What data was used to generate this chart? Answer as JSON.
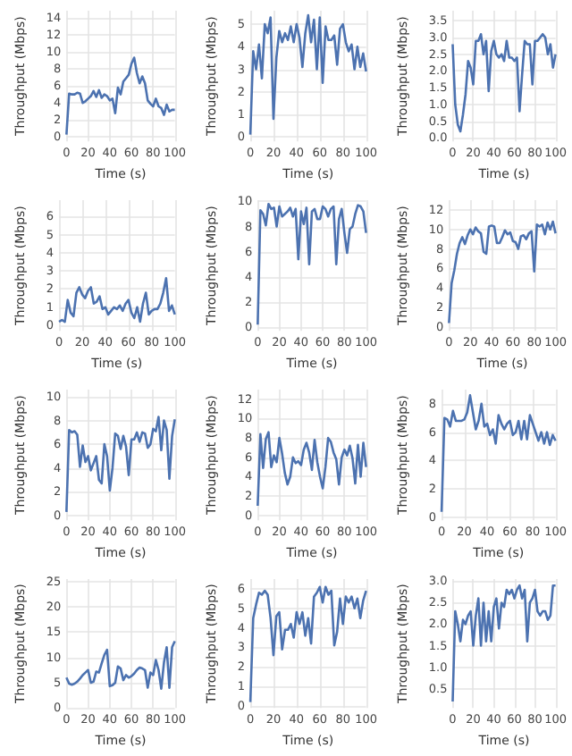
{
  "chart_data": [
    {
      "type": "line",
      "xlabel": "Time (s)",
      "ylabel": "Throughput (Mbps)",
      "grid": true,
      "marker": "none",
      "xlim": [
        0,
        100
      ],
      "xticks": [
        0,
        20,
        40,
        60,
        80,
        100
      ],
      "ylim": [
        -0.5,
        14.8
      ],
      "yticks": [
        0,
        2,
        4,
        6,
        8,
        10,
        12,
        14
      ],
      "x": [
        0,
        2.5,
        5,
        7.5,
        10,
        12.5,
        15,
        17.5,
        20,
        22.5,
        25,
        27.5,
        30,
        32.5,
        35,
        37.5,
        40,
        42.5,
        45,
        47.5,
        50,
        52.5,
        55,
        57.5,
        60,
        62.5,
        65,
        67.5,
        70,
        72.5,
        75,
        77.5,
        80,
        82.5,
        85,
        87.5,
        90,
        92.5,
        95,
        97.5,
        100
      ],
      "series": [
        {
          "color": "#4c72b0",
          "values": [
            0.3,
            5.1,
            5.0,
            5.0,
            5.2,
            5.1,
            4.0,
            4.2,
            4.5,
            4.8,
            5.4,
            4.7,
            5.5,
            4.6,
            5.0,
            4.8,
            4.3,
            4.5,
            2.8,
            5.8,
            5.0,
            6.5,
            6.9,
            7.3,
            8.6,
            9.3,
            7.5,
            6.3,
            7.1,
            6.3,
            4.3,
            3.9,
            3.6,
            4.5,
            3.6,
            3.4,
            2.6,
            3.8,
            3.0,
            3.2,
            3.2
          ]
        }
      ]
    },
    {
      "type": "line",
      "xlabel": "Time (s)",
      "ylabel": "Throughput (Mbps)",
      "grid": true,
      "marker": "none",
      "xlim": [
        0,
        100
      ],
      "xticks": [
        0,
        20,
        40,
        60,
        80,
        100
      ],
      "ylim": [
        -0.2,
        5.6
      ],
      "yticks": [
        0,
        1,
        2,
        3,
        4,
        5
      ],
      "x": [
        0,
        2.5,
        5,
        7.5,
        10,
        12.5,
        15,
        17.5,
        20,
        22.5,
        25,
        27.5,
        30,
        32.5,
        35,
        37.5,
        40,
        42.5,
        45,
        47.5,
        50,
        52.5,
        55,
        57.5,
        60,
        62.5,
        65,
        67.5,
        70,
        72.5,
        75,
        77.5,
        80,
        82.5,
        85,
        87.5,
        90,
        92.5,
        95,
        97.5,
        100
      ],
      "series": [
        {
          "color": "#4c72b0",
          "values": [
            0.1,
            3.8,
            3.0,
            4.1,
            2.6,
            5.0,
            4.6,
            5.3,
            0.8,
            3.5,
            4.7,
            4.2,
            4.6,
            4.3,
            4.9,
            4.2,
            5.0,
            4.4,
            3.1,
            4.6,
            5.4,
            4.2,
            5.2,
            3.0,
            5.3,
            2.4,
            4.9,
            4.3,
            4.3,
            4.5,
            3.2,
            4.8,
            5.0,
            4.2,
            3.8,
            4.1,
            3.0,
            4.0,
            3.1,
            3.7,
            2.9
          ]
        }
      ]
    },
    {
      "type": "line",
      "xlabel": "Time (s)",
      "ylabel": "Throughput (Mbps)",
      "grid": true,
      "marker": "none",
      "xlim": [
        0,
        100
      ],
      "xticks": [
        0,
        20,
        40,
        60,
        80,
        100
      ],
      "ylim": [
        -0.1,
        3.8
      ],
      "yticks": [
        {
          "value": 0,
          "label": "0.0"
        },
        0.5,
        {
          "value": 1,
          "label": "1.0"
        },
        1.5,
        {
          "value": 2,
          "label": "2.0"
        },
        2.5,
        {
          "value": 3,
          "label": "3.0"
        },
        3.5
      ],
      "x": [
        0,
        2.5,
        5,
        7.5,
        10,
        12.5,
        15,
        17.5,
        20,
        22.5,
        25,
        27.5,
        30,
        32.5,
        35,
        37.5,
        40,
        42.5,
        45,
        47.5,
        50,
        52.5,
        55,
        57.5,
        60,
        62.5,
        65,
        67.5,
        70,
        72.5,
        75,
        77.5,
        80,
        82.5,
        85,
        87.5,
        90,
        92.5,
        95,
        97.5,
        100
      ],
      "series": [
        {
          "color": "#4c72b0",
          "values": [
            2.8,
            1.0,
            0.4,
            0.2,
            0.7,
            1.3,
            2.3,
            2.1,
            1.6,
            2.9,
            2.9,
            3.1,
            2.5,
            2.9,
            1.4,
            2.6,
            2.9,
            2.5,
            2.4,
            2.5,
            2.3,
            2.9,
            2.4,
            2.4,
            2.3,
            2.4,
            0.8,
            1.9,
            2.9,
            2.8,
            2.8,
            1.6,
            2.9,
            2.9,
            3.0,
            3.1,
            3.0,
            2.5,
            2.8,
            2.1,
            2.5
          ]
        }
      ]
    },
    {
      "type": "line",
      "xlabel": "Time (s)",
      "ylabel": "Throughput (Mbps)",
      "grid": true,
      "marker": "none",
      "xlim": [
        0,
        100
      ],
      "xticks": [
        0,
        20,
        40,
        60,
        80,
        100
      ],
      "ylim": [
        -0.3,
        6.9
      ],
      "yticks": [
        0,
        1,
        2,
        3,
        4,
        5,
        6
      ],
      "x": [
        0,
        2.5,
        5,
        7.5,
        10,
        12.5,
        15,
        17.5,
        20,
        22.5,
        25,
        27.5,
        30,
        32.5,
        35,
        37.5,
        40,
        42.5,
        45,
        47.5,
        50,
        52.5,
        55,
        57.5,
        60,
        62.5,
        65,
        67.5,
        70,
        72.5,
        75,
        77.5,
        80,
        82.5,
        85,
        87.5,
        90,
        92.5,
        95,
        97.5,
        100
      ],
      "series": [
        {
          "color": "#4c72b0",
          "values": [
            0.2,
            0.3,
            0.2,
            1.4,
            0.7,
            0.5,
            1.8,
            2.1,
            1.7,
            1.5,
            1.9,
            2.1,
            1.2,
            1.3,
            1.6,
            0.9,
            1.0,
            0.6,
            0.8,
            1.0,
            0.9,
            1.1,
            0.8,
            1.2,
            1.4,
            0.7,
            0.4,
            1.0,
            0.2,
            1.2,
            1.8,
            0.6,
            0.8,
            0.9,
            0.9,
            1.2,
            1.8,
            2.6,
            0.8,
            1.1,
            0.6
          ]
        }
      ]
    },
    {
      "type": "line",
      "xlabel": "Time (s)",
      "ylabel": "Throughput (Mbps)",
      "grid": true,
      "marker": "none",
      "xlim": [
        0,
        100
      ],
      "xticks": [
        0,
        20,
        40,
        60,
        80,
        100
      ],
      "ylim": [
        -0.3,
        10.1
      ],
      "yticks": [
        0,
        2,
        4,
        6,
        8,
        10
      ],
      "x": [
        0,
        2.5,
        5,
        7.5,
        10,
        12.5,
        15,
        17.5,
        20,
        22.5,
        25,
        27.5,
        30,
        32.5,
        35,
        37.5,
        40,
        42.5,
        45,
        47.5,
        50,
        52.5,
        55,
        57.5,
        60,
        62.5,
        65,
        67.5,
        70,
        72.5,
        75,
        77.5,
        80,
        82.5,
        85,
        87.5,
        90,
        92.5,
        95,
        97.5,
        100
      ],
      "series": [
        {
          "color": "#4c72b0",
          "values": [
            0.2,
            9.3,
            9.0,
            8.1,
            9.8,
            9.4,
            9.5,
            8.0,
            9.6,
            8.8,
            9.0,
            9.2,
            9.5,
            8.8,
            9.4,
            5.4,
            9.2,
            8.2,
            9.5,
            5.0,
            9.2,
            9.4,
            8.6,
            8.6,
            9.6,
            9.4,
            8.8,
            9.4,
            9.6,
            5.0,
            8.6,
            9.4,
            7.5,
            5.9,
            7.8,
            8.0,
            9.0,
            9.7,
            9.6,
            9.2,
            7.5
          ]
        }
      ]
    },
    {
      "type": "line",
      "xlabel": "Time (s)",
      "ylabel": "Throughput (Mbps)",
      "grid": true,
      "marker": "none",
      "xlim": [
        0,
        100
      ],
      "xticks": [
        0,
        20,
        40,
        60,
        80,
        100
      ],
      "ylim": [
        -0.4,
        13
      ],
      "yticks": [
        0,
        2,
        4,
        6,
        8,
        10,
        12
      ],
      "x": [
        0,
        2.5,
        5,
        7.5,
        10,
        12.5,
        15,
        17.5,
        20,
        22.5,
        25,
        27.5,
        30,
        32.5,
        35,
        37.5,
        40,
        42.5,
        45,
        47.5,
        50,
        52.5,
        55,
        57.5,
        60,
        62.5,
        65,
        67.5,
        70,
        72.5,
        75,
        77.5,
        80,
        82.5,
        85,
        87.5,
        90,
        92.5,
        95,
        97.5,
        100
      ],
      "series": [
        {
          "color": "#4c72b0",
          "values": [
            0.4,
            4.5,
            5.8,
            7.5,
            8.6,
            9.2,
            8.5,
            9.4,
            10.0,
            9.5,
            10.2,
            9.8,
            9.6,
            7.7,
            7.5,
            10.3,
            10.4,
            10.3,
            8.6,
            8.6,
            9.2,
            9.9,
            9.5,
            9.7,
            8.8,
            8.7,
            8.0,
            9.3,
            9.4,
            9.0,
            9.6,
            9.8,
            5.7,
            10.5,
            10.3,
            10.5,
            9.5,
            10.7,
            10.0,
            10.8,
            9.6
          ]
        }
      ]
    },
    {
      "type": "line",
      "xlabel": "Time (s)",
      "ylabel": "Throughput (Mbps)",
      "grid": true,
      "marker": "none",
      "xlim": [
        0,
        100
      ],
      "xticks": [
        0,
        20,
        40,
        60,
        80,
        100
      ],
      "ylim": [
        -0.4,
        10.6
      ],
      "yticks": [
        0,
        2,
        4,
        6,
        8,
        10
      ],
      "x": [
        0,
        2.5,
        5,
        7.5,
        10,
        12.5,
        15,
        17.5,
        20,
        22.5,
        25,
        27.5,
        30,
        32.5,
        35,
        37.5,
        40,
        42.5,
        45,
        47.5,
        50,
        52.5,
        55,
        57.5,
        60,
        62.5,
        65,
        67.5,
        70,
        72.5,
        75,
        77.5,
        80,
        82.5,
        85,
        87.5,
        90,
        92.5,
        95,
        97.5,
        100
      ],
      "series": [
        {
          "color": "#4c72b0",
          "values": [
            0.3,
            7.2,
            7.0,
            7.1,
            6.8,
            4.1,
            5.9,
            4.5,
            5.0,
            3.8,
            4.4,
            5.0,
            3.0,
            2.7,
            6.0,
            5.0,
            2.1,
            4.0,
            6.9,
            6.7,
            5.6,
            6.7,
            5.8,
            3.4,
            6.4,
            6.4,
            7.0,
            6.2,
            7.0,
            6.9,
            5.7,
            6.0,
            7.3,
            7.1,
            8.3,
            5.5,
            8.0,
            7.2,
            3.1,
            6.7,
            8.1
          ]
        }
      ]
    },
    {
      "type": "line",
      "xlabel": "Time (s)",
      "ylabel": "Throughput (Mbps)",
      "grid": true,
      "marker": "none",
      "xlim": [
        0,
        100
      ],
      "xticks": [
        0,
        20,
        40,
        60,
        80,
        100
      ],
      "ylim": [
        -0.5,
        13
      ],
      "yticks": [
        0,
        2,
        4,
        6,
        8,
        10,
        12
      ],
      "x": [
        0,
        2.5,
        5,
        7.5,
        10,
        12.5,
        15,
        17.5,
        20,
        22.5,
        25,
        27.5,
        30,
        32.5,
        35,
        37.5,
        40,
        42.5,
        45,
        47.5,
        50,
        52.5,
        55,
        57.5,
        60,
        62.5,
        65,
        67.5,
        70,
        72.5,
        75,
        77.5,
        80,
        82.5,
        85,
        87.5,
        90,
        92.5,
        95,
        97.5,
        100
      ],
      "series": [
        {
          "color": "#4c72b0",
          "values": [
            1.0,
            8.4,
            4.9,
            7.9,
            8.6,
            5.0,
            6.2,
            5.5,
            8.0,
            6.4,
            4.4,
            3.2,
            4.0,
            6.0,
            5.4,
            5.6,
            5.2,
            6.8,
            7.5,
            6.5,
            4.7,
            7.8,
            5.5,
            4.0,
            2.8,
            5.0,
            8.0,
            7.6,
            6.5,
            5.8,
            3.2,
            6.0,
            6.8,
            6.2,
            7.2,
            5.9,
            3.3,
            7.3,
            4.0,
            7.5,
            5.0
          ]
        }
      ]
    },
    {
      "type": "line",
      "xlabel": "Time (s)",
      "ylabel": "Throughput (Mbps)",
      "grid": true,
      "marker": "none",
      "xlim": [
        0,
        100
      ],
      "xticks": [
        0,
        20,
        40,
        60,
        80,
        100
      ],
      "ylim": [
        -0.2,
        9
      ],
      "yticks": [
        0,
        2,
        4,
        6,
        8
      ],
      "x": [
        0,
        2.5,
        5,
        7.5,
        10,
        12.5,
        15,
        17.5,
        20,
        22.5,
        25,
        27.5,
        30,
        32.5,
        35,
        37.5,
        40,
        42.5,
        45,
        47.5,
        50,
        52.5,
        55,
        57.5,
        60,
        62.5,
        65,
        67.5,
        70,
        72.5,
        75,
        77.5,
        80,
        82.5,
        85,
        87.5,
        90,
        92.5,
        95,
        97.5,
        100
      ],
      "series": [
        {
          "color": "#4c72b0",
          "values": [
            0.4,
            7.0,
            6.9,
            6.4,
            7.5,
            6.8,
            6.8,
            6.8,
            6.9,
            7.4,
            8.6,
            7.4,
            6.2,
            6.8,
            8.0,
            6.4,
            6.6,
            5.8,
            6.2,
            5.2,
            7.2,
            6.6,
            6.2,
            6.6,
            6.8,
            5.8,
            6.0,
            6.8,
            5.5,
            6.8,
            5.5,
            7.2,
            6.6,
            6.0,
            5.4,
            6.0,
            5.2,
            6.0,
            5.1,
            5.8,
            5.4
          ]
        }
      ]
    },
    {
      "type": "line",
      "xlabel": "Time (s)",
      "ylabel": "Throughput (Mbps)",
      "grid": true,
      "marker": "none",
      "xlim": [
        0,
        100
      ],
      "xticks": [
        0,
        20,
        40,
        60,
        80,
        100
      ],
      "ylim": [
        0,
        25.5
      ],
      "yticks": [
        0,
        5,
        10,
        15,
        20,
        25
      ],
      "x": [
        0,
        2.5,
        5,
        7.5,
        10,
        12.5,
        15,
        17.5,
        20,
        22.5,
        25,
        27.5,
        30,
        32.5,
        35,
        37.5,
        40,
        42.5,
        45,
        47.5,
        50,
        52.5,
        55,
        57.5,
        60,
        62.5,
        65,
        67.5,
        70,
        72.5,
        75,
        77.5,
        80,
        82.5,
        85,
        87.5,
        90,
        92.5,
        95,
        97.5,
        100
      ],
      "series": [
        {
          "color": "#4c72b0",
          "values": [
            6.0,
            4.8,
            4.6,
            4.8,
            5.2,
            5.8,
            6.5,
            7.0,
            7.5,
            5.0,
            5.2,
            7.2,
            7.0,
            8.8,
            10.5,
            11.5,
            4.3,
            4.5,
            5.0,
            8.2,
            7.8,
            5.5,
            6.5,
            6.0,
            6.3,
            6.8,
            7.5,
            8.0,
            7.8,
            7.5,
            4.0,
            7.0,
            6.5,
            9.5,
            7.5,
            3.8,
            9.0,
            12.0,
            4.0,
            12.0,
            13.2
          ]
        }
      ]
    },
    {
      "type": "line",
      "xlabel": "Time (s)",
      "ylabel": "Throughput (Mbps)",
      "grid": true,
      "marker": "none",
      "xlim": [
        0,
        100
      ],
      "xticks": [
        0,
        20,
        40,
        60,
        80,
        100
      ],
      "ylim": [
        -0.1,
        6.5
      ],
      "yticks": [
        0,
        1,
        2,
        3,
        4,
        5,
        6
      ],
      "x": [
        0,
        2.5,
        5,
        7.5,
        10,
        12.5,
        15,
        17.5,
        20,
        22.5,
        25,
        27.5,
        30,
        32.5,
        35,
        37.5,
        40,
        42.5,
        45,
        47.5,
        50,
        52.5,
        55,
        57.5,
        60,
        62.5,
        65,
        67.5,
        70,
        72.5,
        75,
        77.5,
        80,
        82.5,
        85,
        87.5,
        90,
        92.5,
        95,
        97.5,
        100
      ],
      "series": [
        {
          "color": "#4c72b0",
          "values": [
            0.2,
            4.5,
            5.2,
            5.8,
            5.7,
            5.9,
            5.7,
            4.5,
            2.6,
            4.6,
            4.8,
            2.9,
            3.9,
            3.9,
            4.2,
            3.5,
            4.8,
            4.2,
            4.8,
            3.6,
            4.5,
            3.2,
            5.6,
            5.8,
            6.1,
            5.3,
            6.1,
            5.7,
            5.9,
            3.1,
            3.8,
            5.5,
            4.2,
            5.6,
            5.3,
            5.6,
            5.0,
            5.5,
            4.5,
            5.4,
            5.9
          ]
        }
      ]
    },
    {
      "type": "line",
      "xlabel": "Time (s)",
      "ylabel": "Throughput (Mbps)",
      "grid": true,
      "marker": "none",
      "xlim": [
        0,
        100
      ],
      "xticks": [
        0,
        20,
        40,
        60,
        80,
        100
      ],
      "ylim": [
        0.05,
        3.05
      ],
      "yticks": [
        0.5,
        {
          "value": 1,
          "label": "1.0"
        },
        1.5,
        {
          "value": 2,
          "label": "2.0"
        },
        2.5,
        {
          "value": 3,
          "label": "3.0"
        }
      ],
      "x": [
        0,
        2.5,
        5,
        7.5,
        10,
        12.5,
        15,
        17.5,
        20,
        22.5,
        25,
        27.5,
        30,
        32.5,
        35,
        37.5,
        40,
        42.5,
        45,
        47.5,
        50,
        52.5,
        55,
        57.5,
        60,
        62.5,
        65,
        67.5,
        70,
        72.5,
        75,
        77.5,
        80,
        82.5,
        85,
        87.5,
        90,
        92.5,
        95,
        97.5,
        100
      ],
      "series": [
        {
          "color": "#4c72b0",
          "values": [
            0.2,
            2.3,
            2.0,
            1.6,
            2.1,
            2.0,
            2.2,
            2.3,
            1.5,
            2.2,
            2.6,
            1.5,
            2.5,
            1.6,
            2.3,
            1.6,
            2.4,
            2.6,
            1.9,
            2.5,
            2.4,
            2.8,
            2.7,
            2.8,
            2.6,
            2.8,
            2.9,
            2.6,
            2.8,
            1.6,
            2.5,
            2.6,
            2.8,
            2.3,
            2.2,
            2.3,
            2.3,
            2.1,
            2.2,
            2.9,
            2.9
          ]
        }
      ]
    }
  ]
}
